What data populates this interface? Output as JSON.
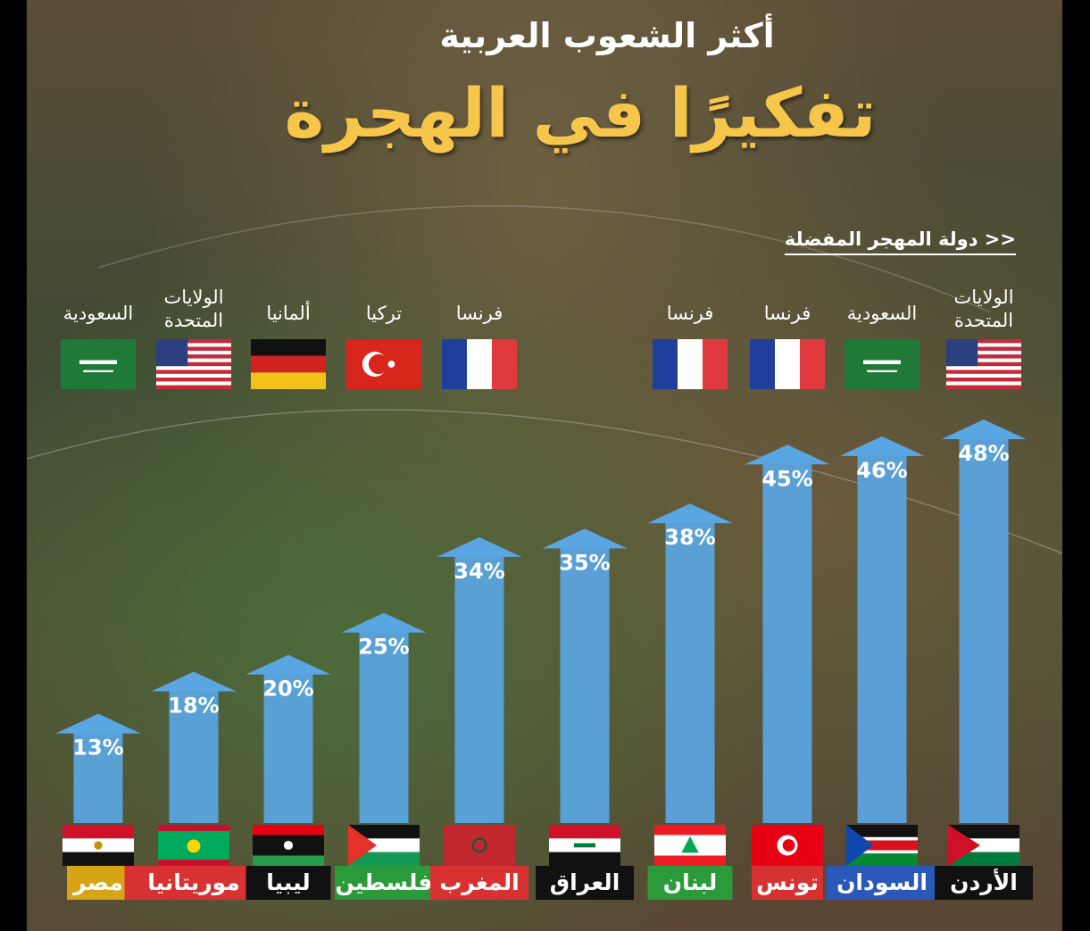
{
  "header": {
    "title_line1": "أكثر الشعوب العربية",
    "title_line2": "تفكيرًا في الهجرة",
    "subtitle": "<< دولة المهجر المفضلة"
  },
  "colors": {
    "bar": "#5aa6e3",
    "title_accent": "#f6c64a"
  },
  "chart_data": {
    "type": "bar",
    "categories": [
      "مصر",
      "موريتانيا",
      "ليبيا",
      "فلسطين",
      "المغرب",
      "العراق",
      "لبنان",
      "تونس",
      "السودان",
      "الأردن"
    ],
    "values": [
      13,
      18,
      20,
      25,
      34,
      35,
      38,
      45,
      46,
      48
    ],
    "value_labels": [
      "13%",
      "18%",
      "20%",
      "25%",
      "34%",
      "35%",
      "38%",
      "45%",
      "46%",
      "48%"
    ],
    "destinations": [
      "السعودية",
      "الولايات المتحدة",
      "ألمانيا",
      "تركيا",
      "فرنسا",
      "",
      "فرنسا",
      "فرنسا",
      "السعودية",
      "الولايات المتحدة"
    ],
    "destination_flags": [
      "sa-flag",
      "us-flag",
      "de-flag",
      "tr-flag",
      "fr-flag",
      "",
      "fr-flag",
      "fr-flag",
      "sa-flag",
      "us-flag"
    ],
    "country_flags": [
      "eg-flag",
      "mr-flag",
      "ly-flag",
      "ps-flag",
      "ma-flag",
      "iq-flag",
      "lb-flag",
      "tn-flag",
      "sd-flag",
      "jo-flag"
    ],
    "label_colors": [
      "#d8a417",
      "#d83131",
      "#111111",
      "#2a9a3a",
      "#d83131",
      "#111111",
      "#2a9a3a",
      "#d83131",
      "#2a58b8",
      "#111111"
    ],
    "ylim": [
      0,
      48
    ]
  }
}
